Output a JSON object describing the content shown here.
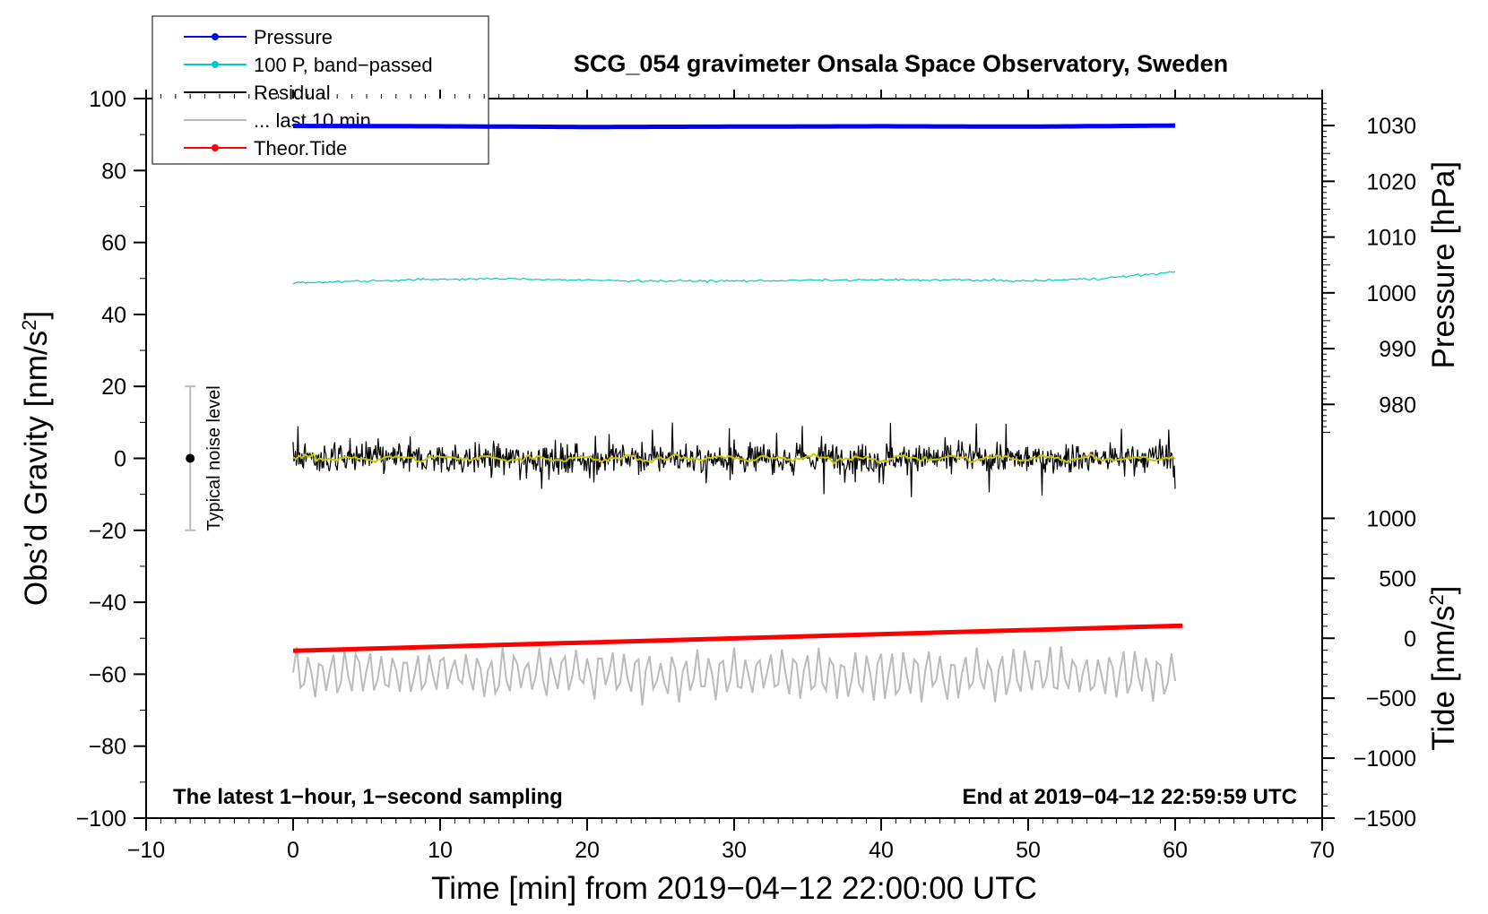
{
  "chart_data": {
    "type": "line",
    "title": "SCG_054 gravimeter Onsala Space Observatory, Sweden",
    "xlabel": "Time [min] from 2019−04−12 22:00:00 UTC",
    "ylabel_left": "Obs’d Gravity [nm/s",
    "ylabel_left_sup": "2",
    "ylabel_left_close": "]",
    "ylabel_right_pressure": "Pressure [hPa]",
    "ylabel_right_tide": "Tide [nm/s",
    "ylabel_right_tide_sup": "2",
    "ylabel_right_tide_close": "]",
    "xlim": [
      -10,
      70
    ],
    "ylim": [
      -100,
      100
    ],
    "x_ticks": [
      "−10",
      "0",
      "10",
      "20",
      "30",
      "40",
      "50",
      "60",
      "70"
    ],
    "x_tick_values": [
      -10,
      0,
      10,
      20,
      30,
      40,
      50,
      60,
      70
    ],
    "y_ticks": [
      "100",
      "80",
      "60",
      "40",
      "20",
      "0",
      "−20",
      "−40",
      "−60",
      "−80",
      "−100"
    ],
    "y_tick_values": [
      100,
      80,
      60,
      40,
      20,
      0,
      -20,
      -40,
      -60,
      -80,
      -100
    ],
    "pressure_axis": {
      "ticks": [
        "1030",
        "1020",
        "1010",
        "1000",
        "990",
        "980"
      ],
      "tick_values": [
        1030,
        1020,
        1010,
        1000,
        990,
        980
      ],
      "gravity_equivalent_at_1030": 92.5,
      "gravity_per_hpa": 1.55
    },
    "tide_axis": {
      "ticks": [
        "1000",
        "500",
        "0",
        "−500",
        "−1000",
        "−1500"
      ],
      "tick_values": [
        1000,
        500,
        0,
        -500,
        -1000,
        -1500
      ],
      "gravity_equivalent_at_0": -50,
      "gravity_per_nms2": 0.03333
    },
    "series": [
      {
        "name": "Pressure",
        "color": "#0000ff",
        "x": [
          0,
          10,
          20,
          30,
          40,
          50,
          60
        ],
        "y": [
          92.4,
          92.3,
          92.1,
          92.2,
          92.3,
          92.2,
          92.5
        ]
      },
      {
        "name": "100 P, band−passed",
        "color": "#00cccc",
        "x": [
          0,
          5,
          10,
          15,
          20,
          25,
          30,
          35,
          40,
          45,
          50,
          55,
          60
        ],
        "y": [
          48.8,
          49.3,
          49.8,
          49.9,
          49.5,
          49.3,
          49.3,
          49.5,
          49.6,
          49.6,
          49.3,
          50.0,
          51.8
        ]
      },
      {
        "name": "Residual",
        "color": "#000000",
        "x_range": [
          0,
          60
        ],
        "amplitude": 6,
        "mean": 0
      },
      {
        "name": "... last 10 min.",
        "color": "#bbbbbb",
        "x_range": [
          0,
          60
        ],
        "amplitude": 7,
        "mean": -60
      },
      {
        "name": "Theor.Tide",
        "color": "#ff0000",
        "x": [
          0,
          60.5
        ],
        "y": [
          -53.5,
          -46.5
        ]
      },
      {
        "name": "smoothed residual",
        "color": "#c8c800",
        "x_range": [
          0,
          60
        ],
        "amplitude": 1.5,
        "mean": 0
      }
    ],
    "noise_bar": {
      "label": "Typical noise level",
      "x": -7,
      "y_center": 0,
      "y_low": -20,
      "y_high": 20
    },
    "legend": {
      "placement": "top-left",
      "entries": [
        {
          "label": "Pressure",
          "color": "#0000ff",
          "marker": true
        },
        {
          "label": "100 P, band−passed",
          "color": "#00cccc",
          "marker": true
        },
        {
          "label": "Residual",
          "color": "#000000",
          "marker": false
        },
        {
          "label": "... last 10 min.",
          "color": "#bbbbbb",
          "marker": false
        },
        {
          "label": "Theor.Tide",
          "color": "#ff0000",
          "marker": true
        }
      ]
    },
    "annotations": {
      "bottom_left": "The latest 1−hour, 1−second sampling",
      "bottom_right": "End at 2019−04−12 22:59:59 UTC"
    }
  }
}
